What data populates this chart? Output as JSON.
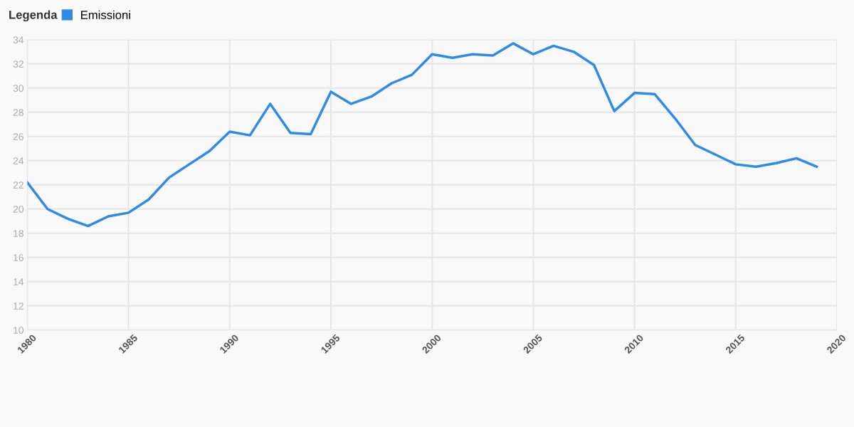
{
  "chart_data": {
    "type": "line",
    "legend_title": "Legenda",
    "legend": "top left",
    "grid": true,
    "marker": "none",
    "line_style": "solid",
    "x": [
      1980,
      1981,
      1982,
      1983,
      1984,
      1985,
      1986,
      1987,
      1988,
      1989,
      1990,
      1991,
      1992,
      1993,
      1994,
      1995,
      1996,
      1997,
      1998,
      1999,
      2000,
      2001,
      2002,
      2003,
      2004,
      2005,
      2006,
      2007,
      2008,
      2009,
      2010,
      2011,
      2012,
      2013,
      2014,
      2015,
      2016,
      2017,
      2018,
      2019
    ],
    "series": [
      {
        "name": "Emissioni",
        "color": "#2f8ae8",
        "values": [
          22.2,
          20.0,
          19.2,
          18.6,
          19.4,
          19.7,
          20.8,
          22.6,
          23.7,
          24.8,
          26.4,
          26.1,
          28.7,
          26.3,
          26.2,
          29.7,
          28.7,
          29.3,
          30.4,
          31.1,
          32.8,
          32.5,
          32.8,
          32.7,
          33.7,
          32.8,
          33.5,
          33.0,
          31.9,
          28.1,
          29.6,
          29.5,
          27.5,
          25.3,
          24.5,
          23.7,
          23.5,
          23.8,
          24.2,
          23.5
        ]
      }
    ],
    "xlim": [
      1980,
      2020
    ],
    "xticks": [
      1980,
      1985,
      1990,
      1995,
      2000,
      2005,
      2010,
      2015,
      2020
    ],
    "ylim": [
      10,
      34
    ],
    "yticks": [
      10,
      12,
      14,
      16,
      18,
      20,
      22,
      24,
      26,
      28,
      30,
      32,
      34
    ]
  }
}
